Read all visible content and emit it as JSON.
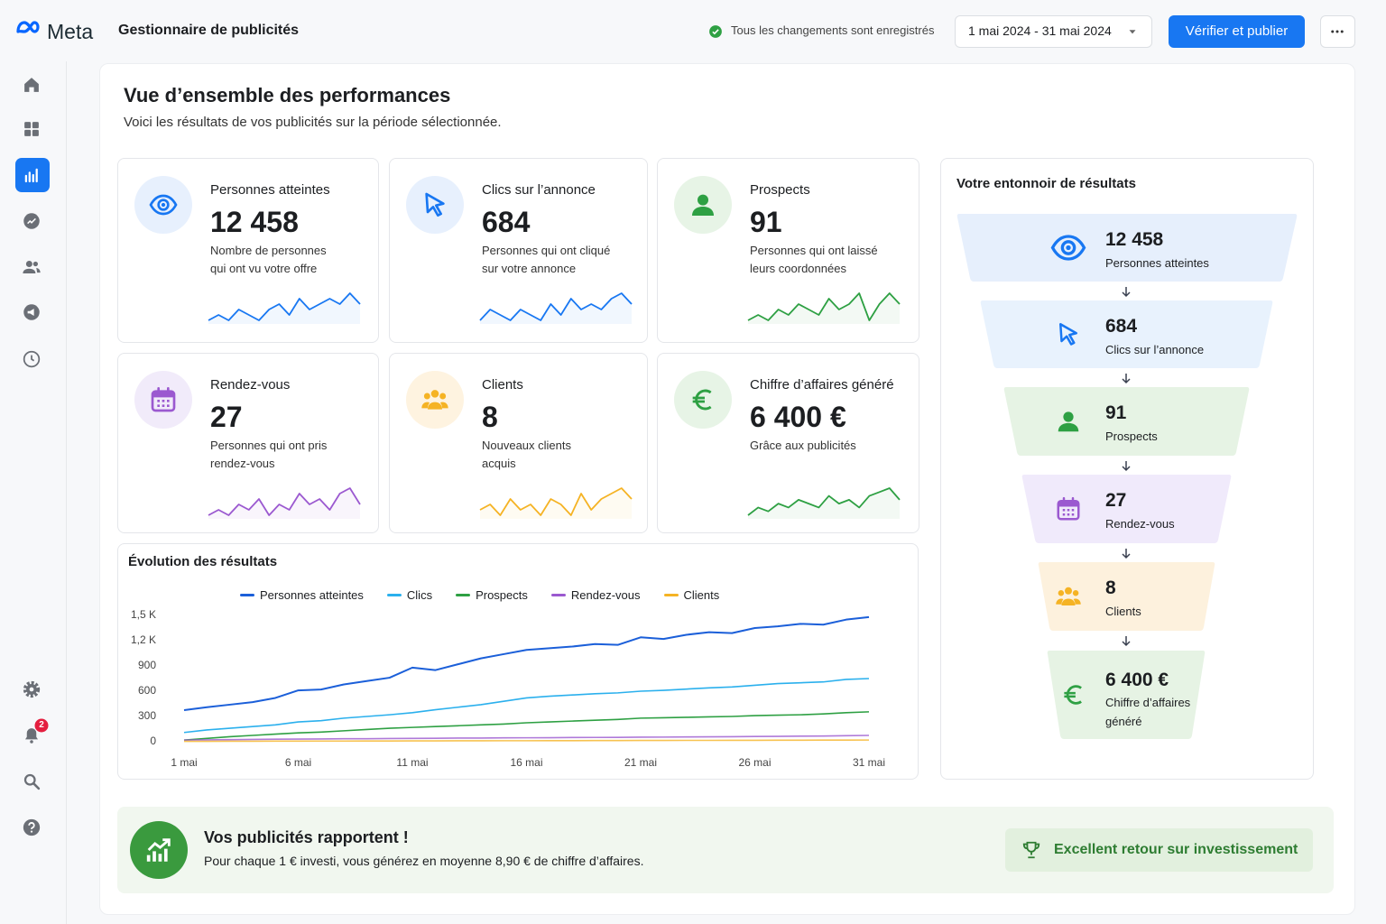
{
  "header": {
    "brand": "Meta",
    "app": "Gestionnaire de publicités",
    "status": "Tous les changements sont enregistrés",
    "date_range": "1 mai 2024 - 31 mai 2024",
    "publish": "Vérifier et publier"
  },
  "sidebar": {
    "notifications": 2
  },
  "overview": {
    "title": "Vue d’ensemble des performances",
    "subtitle": "Voici les résultats de vos publicités sur la période sélectionnée."
  },
  "kpis": [
    {
      "label": "Personnes atteintes",
      "value": "12 458",
      "description": [
        "Nombre de personnes",
        "qui ont vu votre offre"
      ],
      "color": "#1877f2",
      "trend": [
        3,
        4,
        3,
        5,
        4,
        3,
        5,
        6,
        4,
        7,
        5,
        6,
        7,
        6,
        8,
        6
      ]
    },
    {
      "label": "Clics sur l’annonce",
      "value": "684",
      "description": [
        "Personnes qui ont cliqué",
        "sur votre annonce"
      ],
      "color": "#1877f2",
      "trend": [
        3,
        5,
        4,
        3,
        5,
        4,
        3,
        6,
        4,
        7,
        5,
        6,
        5,
        7,
        8,
        6
      ]
    },
    {
      "label": "Prospects",
      "value": "91",
      "description": [
        "Personnes qui ont laissé",
        "leurs coordonnées"
      ],
      "color": "#2ea043",
      "trend": [
        3,
        4,
        3,
        5,
        4,
        6,
        5,
        4,
        7,
        5,
        6,
        8,
        3,
        6,
        8,
        6
      ]
    },
    {
      "label": "Rendez-vous",
      "value": "27",
      "description": [
        "Personnes qui ont pris",
        "rendez-vous"
      ],
      "color": "#9b59d0",
      "trend": [
        3,
        4,
        3,
        5,
        4,
        6,
        3,
        5,
        4,
        7,
        5,
        6,
        4,
        7,
        8,
        5
      ]
    },
    {
      "label": "Clients",
      "value": "8",
      "description": [
        "Nouveaux clients",
        "acquis"
      ],
      "color": "#f5b324",
      "trend": [
        4,
        5,
        3,
        6,
        4,
        5,
        3,
        6,
        5,
        3,
        7,
        4,
        6,
        7,
        8,
        6
      ]
    },
    {
      "label": "Chiffre d’affaires généré",
      "value": "6 400 €",
      "description": [
        "Grâce aux publicités"
      ],
      "color": "#2ea043",
      "trend": [
        3,
        5,
        4,
        6,
        5,
        7,
        6,
        5,
        8,
        6,
        7,
        5,
        8,
        9,
        10,
        7
      ]
    }
  ],
  "funnel": {
    "title": "Votre entonnoir de résultats",
    "steps": [
      {
        "value": "12 458",
        "label": "Personnes atteintes"
      },
      {
        "value": "684",
        "label": "Clics sur l’annonce"
      },
      {
        "value": "91",
        "label": "Prospects"
      },
      {
        "value": "27",
        "label": "Rendez-vous"
      },
      {
        "value": "8",
        "label": "Clients"
      },
      {
        "value": "6 400 €",
        "label": "Chiffre d’affaires généré"
      }
    ]
  },
  "chart_data": {
    "type": "line",
    "title": "Évolution des résultats",
    "categories": [
      "1 mai",
      null,
      null,
      null,
      null,
      "6 mai",
      null,
      null,
      null,
      null,
      "11 mai",
      null,
      null,
      null,
      null,
      "16 mai",
      null,
      null,
      null,
      null,
      "21 mai",
      null,
      null,
      null,
      null,
      "26 mai",
      null,
      null,
      null,
      null,
      "31 mai"
    ],
    "series": [
      {
        "name": "Personnes atteintes",
        "color": "#1b5fd9",
        "values": [
          375,
          410,
          440,
          470,
          520,
          610,
          620,
          680,
          720,
          760,
          880,
          850,
          920,
          990,
          1040,
          1090,
          1110,
          1130,
          1160,
          1150,
          1240,
          1220,
          1270,
          1300,
          1290,
          1350,
          1370,
          1400,
          1390,
          1450,
          1480
        ]
      },
      {
        "name": "Clics",
        "color": "#2bb0ed",
        "values": [
          110,
          140,
          160,
          180,
          200,
          235,
          250,
          280,
          300,
          320,
          345,
          380,
          410,
          440,
          480,
          520,
          540,
          555,
          570,
          580,
          600,
          610,
          625,
          640,
          650,
          670,
          690,
          700,
          710,
          740,
          750
        ]
      },
      {
        "name": "Prospects",
        "color": "#2ea043",
        "values": [
          20,
          40,
          60,
          75,
          90,
          105,
          115,
          130,
          145,
          160,
          170,
          180,
          190,
          200,
          210,
          225,
          235,
          245,
          255,
          265,
          280,
          285,
          290,
          295,
          300,
          310,
          315,
          320,
          330,
          345,
          355
        ]
      },
      {
        "name": "Rendez-vous",
        "color": "#9b59d0",
        "values": [
          20,
          22,
          25,
          27,
          30,
          32,
          33,
          35,
          36,
          38,
          40,
          41,
          43,
          44,
          46,
          47,
          48,
          50,
          51,
          52,
          54,
          55,
          57,
          58,
          60,
          62,
          64,
          66,
          68,
          72,
          75
        ]
      },
      {
        "name": "Clients",
        "color": "#f5b324",
        "values": [
          5,
          5,
          6,
          6,
          7,
          7,
          8,
          8,
          9,
          9,
          10,
          10,
          11,
          11,
          12,
          12,
          13,
          13,
          14,
          14,
          15,
          15,
          16,
          16,
          17,
          17,
          18,
          18,
          19,
          19,
          20
        ]
      }
    ],
    "ylim": [
      0,
      1500
    ],
    "yticks": [
      0,
      300,
      600,
      900,
      {
        "value": 1200,
        "label": "1,2 K"
      },
      {
        "value": 1500,
        "label": "1,5 K"
      }
    ],
    "grid": false
  },
  "roi": {
    "title": "Vos publicités rapportent !",
    "text": "Pour chaque 1 € investi, vous générez en moyenne 8,90 € de chiffre d’affaires.",
    "badge": "Excellent retour sur investissement"
  }
}
